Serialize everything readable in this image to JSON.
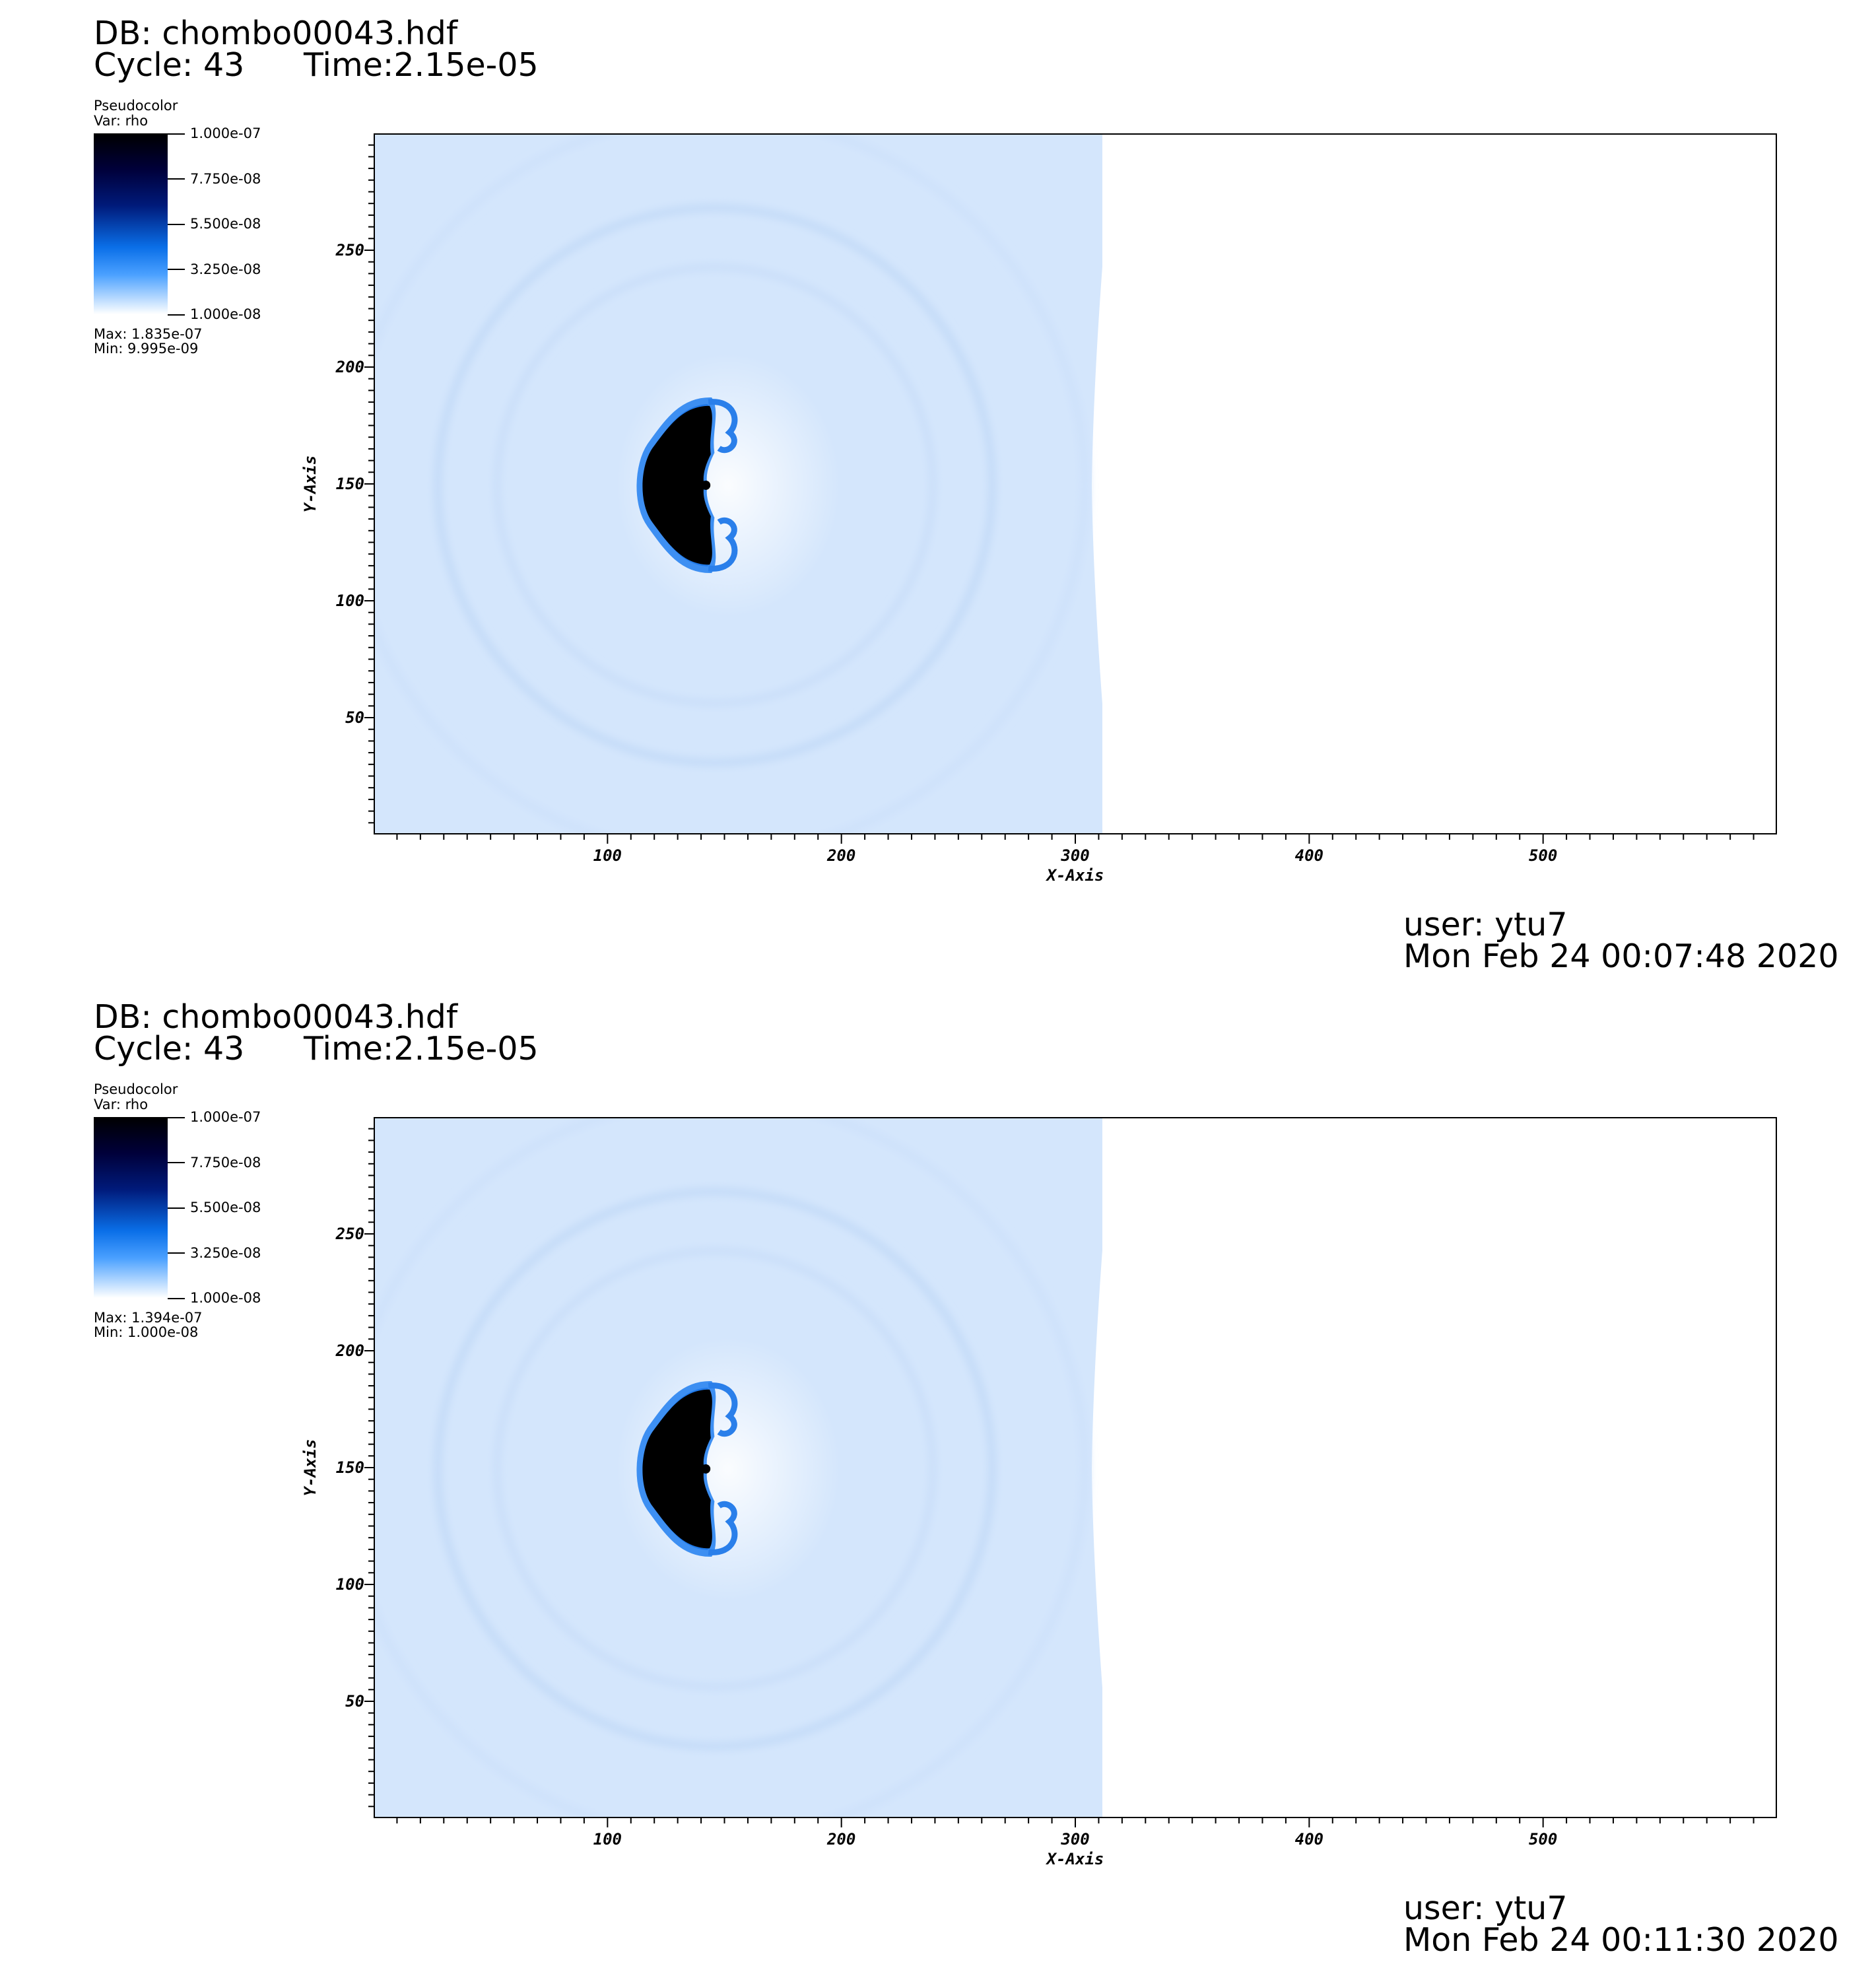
{
  "panels": [
    {
      "db": "DB: chombo00043.hdf",
      "cycle": "Cycle: 43",
      "time": "Time:2.15e-05",
      "legend": {
        "title": "Pseudocolor",
        "var": "Var: rho",
        "ticks": [
          "1.000e-07",
          "7.750e-08",
          "5.500e-08",
          "3.250e-08",
          "1.000e-08"
        ],
        "max": "Max:  1.835e-07",
        "min": "Min:  9.995e-09"
      },
      "user": "user: ytu7",
      "date": "Mon Feb 24 00:07:48 2020"
    },
    {
      "db": "DB: chombo00043.hdf",
      "cycle": "Cycle: 43",
      "time": "Time:2.15e-05",
      "legend": {
        "title": "Pseudocolor",
        "var": "Var: rho",
        "ticks": [
          "1.000e-07",
          "7.750e-08",
          "5.500e-08",
          "3.250e-08",
          "1.000e-08"
        ],
        "max": "Max:  1.394e-07",
        "min": "Min:  1.000e-08"
      },
      "user": "user: ytu7",
      "date": "Mon Feb 24 00:11:30 2020"
    }
  ],
  "chart_data": [
    {
      "type": "heatmap",
      "variable": "rho",
      "colormap": [
        "#000000",
        "#001a7a",
        "#0a6fe8",
        "#ffffff"
      ],
      "color_range": [
        1e-08,
        1e-07
      ],
      "xlabel": "X-Axis",
      "ylabel": "Y-Axis",
      "xlim": [
        0,
        600
      ],
      "ylim": [
        0,
        300
      ],
      "xticks": [
        100,
        200,
        300,
        400,
        500
      ],
      "yticks": [
        50,
        100,
        150,
        200,
        250
      ],
      "shock_front_x": 311,
      "clump_center": [
        120,
        150
      ],
      "data_max": 1.835e-07,
      "data_min": 9.995e-09
    },
    {
      "type": "heatmap",
      "variable": "rho",
      "colormap": [
        "#000000",
        "#001a7a",
        "#0a6fe8",
        "#ffffff"
      ],
      "color_range": [
        1e-08,
        1e-07
      ],
      "xlabel": "X-Axis",
      "ylabel": "Y-Axis",
      "xlim": [
        0,
        600
      ],
      "ylim": [
        0,
        300
      ],
      "xticks": [
        100,
        200,
        300,
        400,
        500
      ],
      "yticks": [
        50,
        100,
        150,
        200,
        250
      ],
      "shock_front_x": 311,
      "clump_center": [
        120,
        150
      ],
      "data_max": 1.394e-07,
      "data_min": 1e-08
    }
  ]
}
